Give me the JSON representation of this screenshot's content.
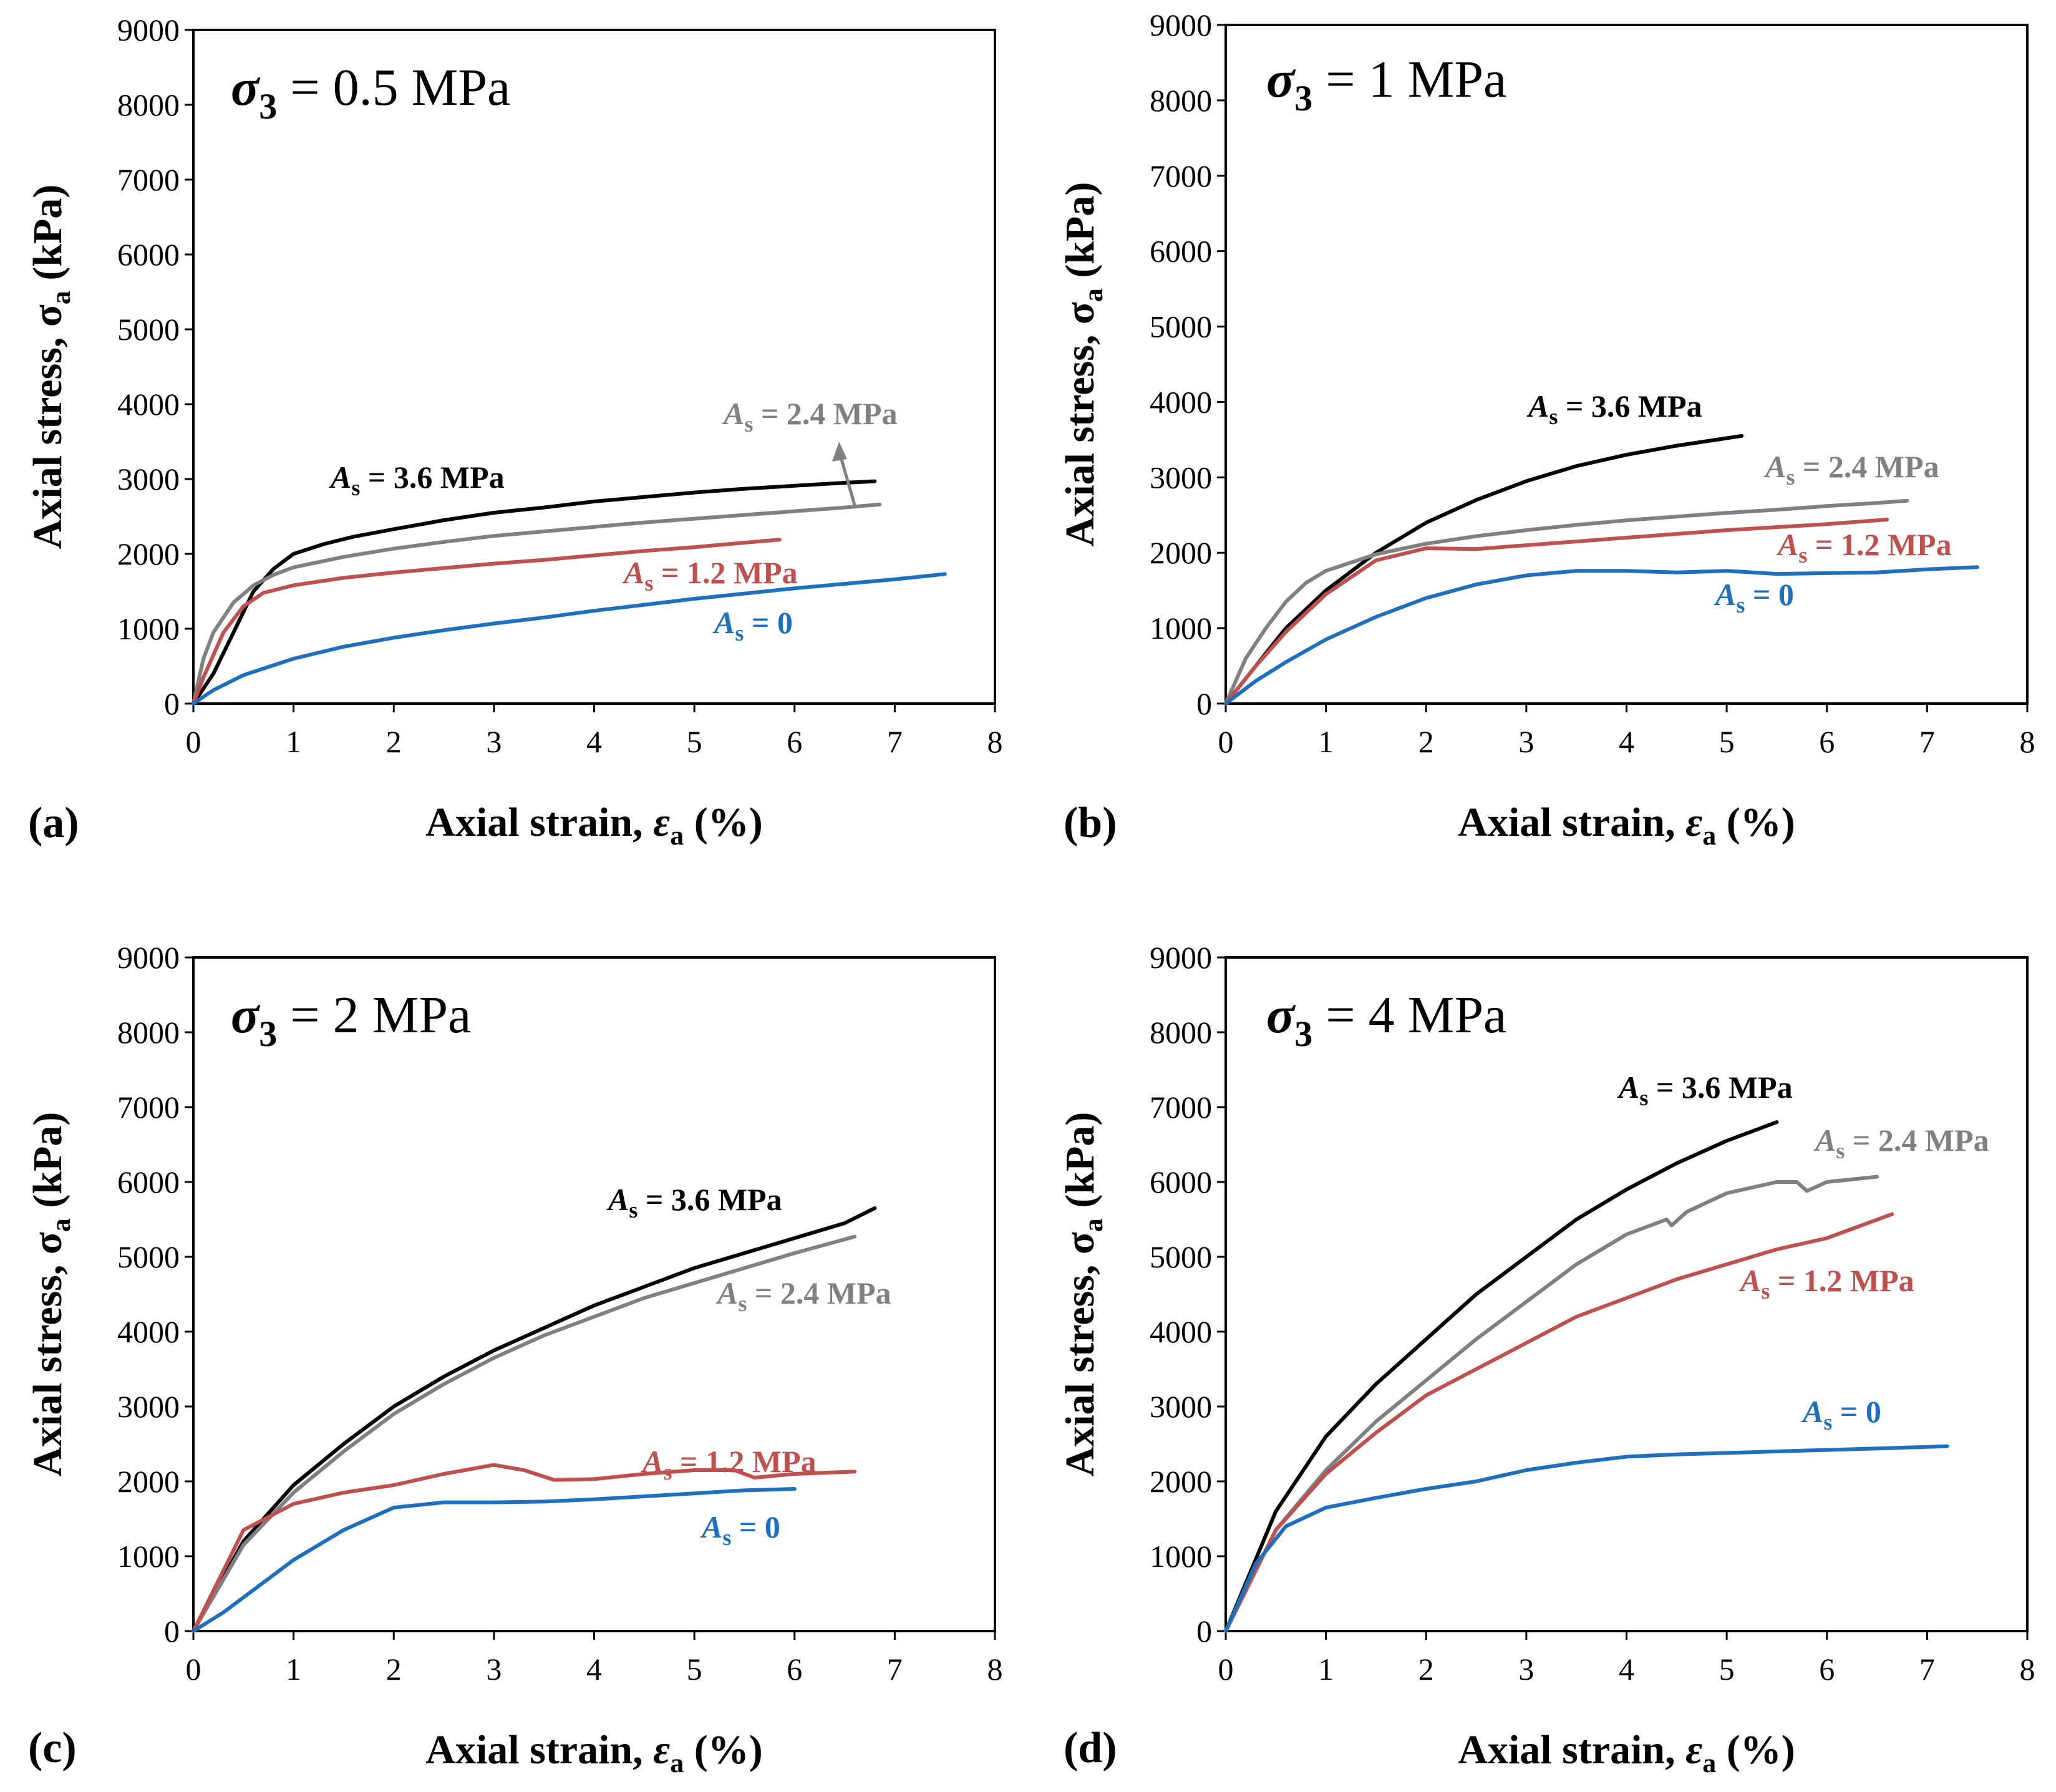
{
  "chart_data": [
    {
      "type": "line",
      "panel_label": "(a)",
      "condition": {
        "symbol": "σ",
        "sub": "3",
        "text": " = 0.5 MPa"
      },
      "xlabel": {
        "pre": "Axial strain, ",
        "sym": "ε",
        "sub": "a",
        "post": " (%)"
      },
      "ylabel": {
        "pre": "Axial stress, σ",
        "sub": "a",
        "post": " (kPa)"
      },
      "xlim": [
        0,
        8
      ],
      "ylim": [
        0,
        9000
      ],
      "xticks": [
        0,
        1,
        2,
        3,
        4,
        5,
        6,
        7,
        8
      ],
      "yticks": [
        0,
        1000,
        2000,
        3000,
        4000,
        5000,
        6000,
        7000,
        8000,
        9000
      ],
      "series": [
        {
          "label": {
            "sym": "A",
            "sub": "s",
            "text": "= 3.6 MPa"
          },
          "color": "#000000",
          "x": [
            0,
            0.2,
            0.4,
            0.6,
            0.8,
            1.0,
            1.3,
            1.6,
            2.0,
            2.5,
            3.0,
            3.5,
            4.0,
            4.5,
            5.0,
            5.5,
            6.0,
            6.5,
            6.8
          ],
          "y": [
            0,
            400,
            950,
            1500,
            1800,
            2000,
            2130,
            2230,
            2330,
            2450,
            2550,
            2620,
            2700,
            2760,
            2820,
            2870,
            2910,
            2950,
            2970
          ]
        },
        {
          "label": {
            "sym": "A",
            "sub": "s",
            "text": "= 2.4 MPa"
          },
          "color": "#808080",
          "x": [
            0,
            0.1,
            0.2,
            0.4,
            0.6,
            0.8,
            1.0,
            1.5,
            2.0,
            2.5,
            3.0,
            3.5,
            4.0,
            4.5,
            5.0,
            5.5,
            6.0,
            6.5,
            6.85
          ],
          "y": [
            0,
            600,
            950,
            1350,
            1580,
            1720,
            1820,
            1960,
            2070,
            2160,
            2240,
            2300,
            2360,
            2420,
            2470,
            2520,
            2570,
            2620,
            2660
          ]
        },
        {
          "label": {
            "sym": "A",
            "sub": "s",
            "text": "= 1.2 MPa"
          },
          "color": "#c0504d",
          "x": [
            0,
            0.1,
            0.2,
            0.3,
            0.5,
            0.7,
            1.0,
            1.5,
            2.0,
            2.5,
            3.0,
            3.5,
            4.0,
            4.5,
            5.0,
            5.5,
            5.85
          ],
          "y": [
            0,
            350,
            650,
            950,
            1300,
            1480,
            1580,
            1680,
            1750,
            1810,
            1870,
            1920,
            1980,
            2040,
            2090,
            2150,
            2190
          ]
        },
        {
          "label": {
            "sym": "A",
            "sub": "s",
            "text": "= 0"
          },
          "color": "#1f6fbf",
          "x": [
            0,
            0.2,
            0.5,
            1.0,
            1.5,
            2.0,
            2.5,
            3.0,
            3.5,
            4.0,
            4.5,
            5.0,
            5.5,
            6.0,
            6.5,
            7.0,
            7.5
          ],
          "y": [
            0,
            180,
            380,
            600,
            760,
            880,
            980,
            1070,
            1150,
            1240,
            1320,
            1400,
            1470,
            1540,
            1600,
            1660,
            1730
          ]
        }
      ]
    },
    {
      "type": "line",
      "panel_label": "(b)",
      "condition": {
        "symbol": "σ",
        "sub": "3",
        "text": " = 1 MPa"
      },
      "xlabel": {
        "pre": "Axial strain, ",
        "sym": "ε",
        "sub": "a",
        "post": " (%)"
      },
      "ylabel": {
        "pre": "Axial stress, σ",
        "sub": "a",
        "post": " (kPa)"
      },
      "xlim": [
        0,
        8
      ],
      "ylim": [
        0,
        9000
      ],
      "xticks": [
        0,
        1,
        2,
        3,
        4,
        5,
        6,
        7,
        8
      ],
      "yticks": [
        0,
        1000,
        2000,
        3000,
        4000,
        5000,
        6000,
        7000,
        8000,
        9000
      ],
      "series": [
        {
          "label": {
            "sym": "A",
            "sub": "s",
            "text": "= 3.6 MPa"
          },
          "color": "#000000",
          "x": [
            0,
            0.3,
            0.6,
            1.0,
            1.5,
            2.0,
            2.5,
            3.0,
            3.5,
            4.0,
            4.5,
            5.0,
            5.15
          ],
          "y": [
            0,
            500,
            1000,
            1500,
            2000,
            2400,
            2700,
            2950,
            3150,
            3300,
            3420,
            3520,
            3550
          ]
        },
        {
          "label": {
            "sym": "A",
            "sub": "s",
            "text": "= 2.4 MPa"
          },
          "color": "#808080",
          "x": [
            0,
            0.2,
            0.4,
            0.6,
            0.8,
            1.0,
            1.5,
            2.0,
            2.5,
            3.0,
            3.5,
            4.0,
            4.5,
            5.0,
            5.5,
            6.0,
            6.5,
            6.8
          ],
          "y": [
            0,
            600,
            1000,
            1350,
            1600,
            1760,
            1980,
            2120,
            2220,
            2300,
            2370,
            2430,
            2480,
            2530,
            2570,
            2620,
            2660,
            2690
          ]
        },
        {
          "label": {
            "sym": "A",
            "sub": "s",
            "text": "= 1.2 MPa"
          },
          "color": "#c0504d",
          "x": [
            0,
            0.3,
            0.6,
            1.0,
            1.5,
            2.0,
            2.5,
            3.0,
            3.5,
            4.0,
            4.5,
            5.0,
            5.5,
            6.0,
            6.6
          ],
          "y": [
            0,
            500,
            950,
            1450,
            1900,
            2060,
            2050,
            2100,
            2150,
            2200,
            2250,
            2300,
            2340,
            2380,
            2440
          ]
        },
        {
          "label": {
            "sym": "A",
            "sub": "s",
            "text": "= 0"
          },
          "color": "#1f6fbf",
          "x": [
            0,
            0.3,
            0.6,
            1.0,
            1.5,
            2.0,
            2.5,
            3.0,
            3.5,
            4.0,
            4.5,
            5.0,
            5.5,
            6.0,
            6.5,
            7.0,
            7.5
          ],
          "y": [
            0,
            300,
            550,
            850,
            1150,
            1400,
            1580,
            1700,
            1760,
            1760,
            1740,
            1760,
            1720,
            1730,
            1740,
            1780,
            1810
          ]
        }
      ]
    },
    {
      "type": "line",
      "panel_label": "(c)",
      "condition": {
        "symbol": "σ",
        "sub": "3",
        "text": " = 2 MPa"
      },
      "xlabel": {
        "pre": "Axial strain, ",
        "sym": "ε",
        "sub": "a",
        "post": " (%)"
      },
      "ylabel": {
        "pre": "Axial stress, σ",
        "sub": "a",
        "post": " (kPa)"
      },
      "xlim": [
        0,
        8
      ],
      "ylim": [
        0,
        9000
      ],
      "xticks": [
        0,
        1,
        2,
        3,
        4,
        5,
        6,
        7,
        8
      ],
      "yticks": [
        0,
        1000,
        2000,
        3000,
        4000,
        5000,
        6000,
        7000,
        8000,
        9000
      ],
      "series": [
        {
          "label": {
            "sym": "A",
            "sub": "s",
            "text": "= 3.6 MPa"
          },
          "color": "#000000",
          "x": [
            0,
            0.5,
            1.0,
            1.5,
            2.0,
            2.5,
            3.0,
            3.5,
            4.0,
            4.5,
            5.0,
            5.5,
            6.0,
            6.5,
            6.8
          ],
          "y": [
            0,
            1200,
            1950,
            2500,
            3000,
            3400,
            3750,
            4050,
            4350,
            4600,
            4850,
            5050,
            5250,
            5450,
            5650
          ]
        },
        {
          "label": {
            "sym": "A",
            "sub": "s",
            "text": "= 2.4 MPa"
          },
          "color": "#808080",
          "x": [
            0,
            0.5,
            1.0,
            1.5,
            2.0,
            2.5,
            3.0,
            3.5,
            4.0,
            4.5,
            5.0,
            5.5,
            6.0,
            6.6
          ],
          "y": [
            0,
            1150,
            1850,
            2400,
            2900,
            3300,
            3650,
            3950,
            4200,
            4450,
            4650,
            4850,
            5050,
            5270
          ]
        },
        {
          "label": {
            "sym": "A",
            "sub": "s",
            "text": "= 1.2 MPa"
          },
          "color": "#c0504d",
          "x": [
            0,
            0.5,
            1.0,
            1.5,
            2.0,
            2.5,
            3.0,
            3.3,
            3.6,
            4.0,
            4.5,
            5.0,
            5.4,
            5.6,
            6.0,
            6.6
          ],
          "y": [
            0,
            1350,
            1700,
            1850,
            1950,
            2100,
            2220,
            2150,
            2020,
            2030,
            2100,
            2150,
            2150,
            2050,
            2100,
            2130
          ]
        },
        {
          "label": {
            "sym": "A",
            "sub": "s",
            "text": "= 0"
          },
          "color": "#1f6fbf",
          "x": [
            0,
            0.3,
            0.6,
            1.0,
            1.5,
            2.0,
            2.5,
            3.0,
            3.5,
            4.0,
            4.5,
            5.0,
            5.5,
            6.0
          ],
          "y": [
            0,
            250,
            550,
            950,
            1350,
            1650,
            1720,
            1720,
            1730,
            1760,
            1800,
            1840,
            1880,
            1900
          ]
        }
      ]
    },
    {
      "type": "line",
      "panel_label": "(d)",
      "condition": {
        "symbol": "σ",
        "sub": "3",
        "text": " = 4 MPa"
      },
      "xlabel": {
        "pre": "Axial strain, ",
        "sym": "ε",
        "sub": "a",
        "post": " (%)"
      },
      "ylabel": {
        "pre": "Axial stress, σ",
        "sub": "a",
        "post": " (kPa)"
      },
      "xlim": [
        0,
        8
      ],
      "ylim": [
        0,
        9000
      ],
      "xticks": [
        0,
        1,
        2,
        3,
        4,
        5,
        6,
        7,
        8
      ],
      "yticks": [
        0,
        1000,
        2000,
        3000,
        4000,
        5000,
        6000,
        7000,
        8000,
        9000
      ],
      "series": [
        {
          "label": {
            "sym": "A",
            "sub": "s",
            "text": "= 3.6 MPa"
          },
          "color": "#000000",
          "x": [
            0,
            0.5,
            1.0,
            1.5,
            2.0,
            2.5,
            3.0,
            3.5,
            4.0,
            4.5,
            5.0,
            5.5
          ],
          "y": [
            0,
            1600,
            2600,
            3300,
            3900,
            4500,
            5000,
            5500,
            5900,
            6250,
            6550,
            6800
          ]
        },
        {
          "label": {
            "sym": "A",
            "sub": "s",
            "text": "= 2.4 MPa"
          },
          "color": "#808080",
          "x": [
            0,
            0.5,
            1.0,
            1.5,
            2.0,
            2.5,
            3.0,
            3.5,
            4.0,
            4.4,
            4.45,
            4.6,
            5.0,
            5.5,
            5.7,
            5.8,
            6.0,
            6.5
          ],
          "y": [
            0,
            1350,
            2150,
            2800,
            3350,
            3900,
            4400,
            4900,
            5300,
            5500,
            5420,
            5600,
            5850,
            6000,
            6000,
            5880,
            6000,
            6070
          ]
        },
        {
          "label": {
            "sym": "A",
            "sub": "s",
            "text": "= 1.2 MPa"
          },
          "color": "#c0504d",
          "x": [
            0,
            0.5,
            1.0,
            1.5,
            2.0,
            2.5,
            3.0,
            3.5,
            4.0,
            4.5,
            5.0,
            5.5,
            6.0,
            6.65
          ],
          "y": [
            0,
            1350,
            2100,
            2650,
            3150,
            3500,
            3850,
            4200,
            4450,
            4700,
            4900,
            5100,
            5250,
            5570
          ]
        },
        {
          "label": {
            "sym": "A",
            "sub": "s",
            "text": "= 0"
          },
          "color": "#1f6fbf",
          "x": [
            0,
            0.3,
            0.6,
            1.0,
            1.5,
            2.0,
            2.5,
            3.0,
            3.5,
            4.0,
            4.5,
            5.0,
            5.5,
            6.0,
            6.5,
            7.0,
            7.2
          ],
          "y": [
            0,
            900,
            1400,
            1650,
            1780,
            1900,
            2000,
            2150,
            2250,
            2330,
            2360,
            2380,
            2400,
            2420,
            2440,
            2460,
            2470
          ]
        }
      ]
    }
  ]
}
